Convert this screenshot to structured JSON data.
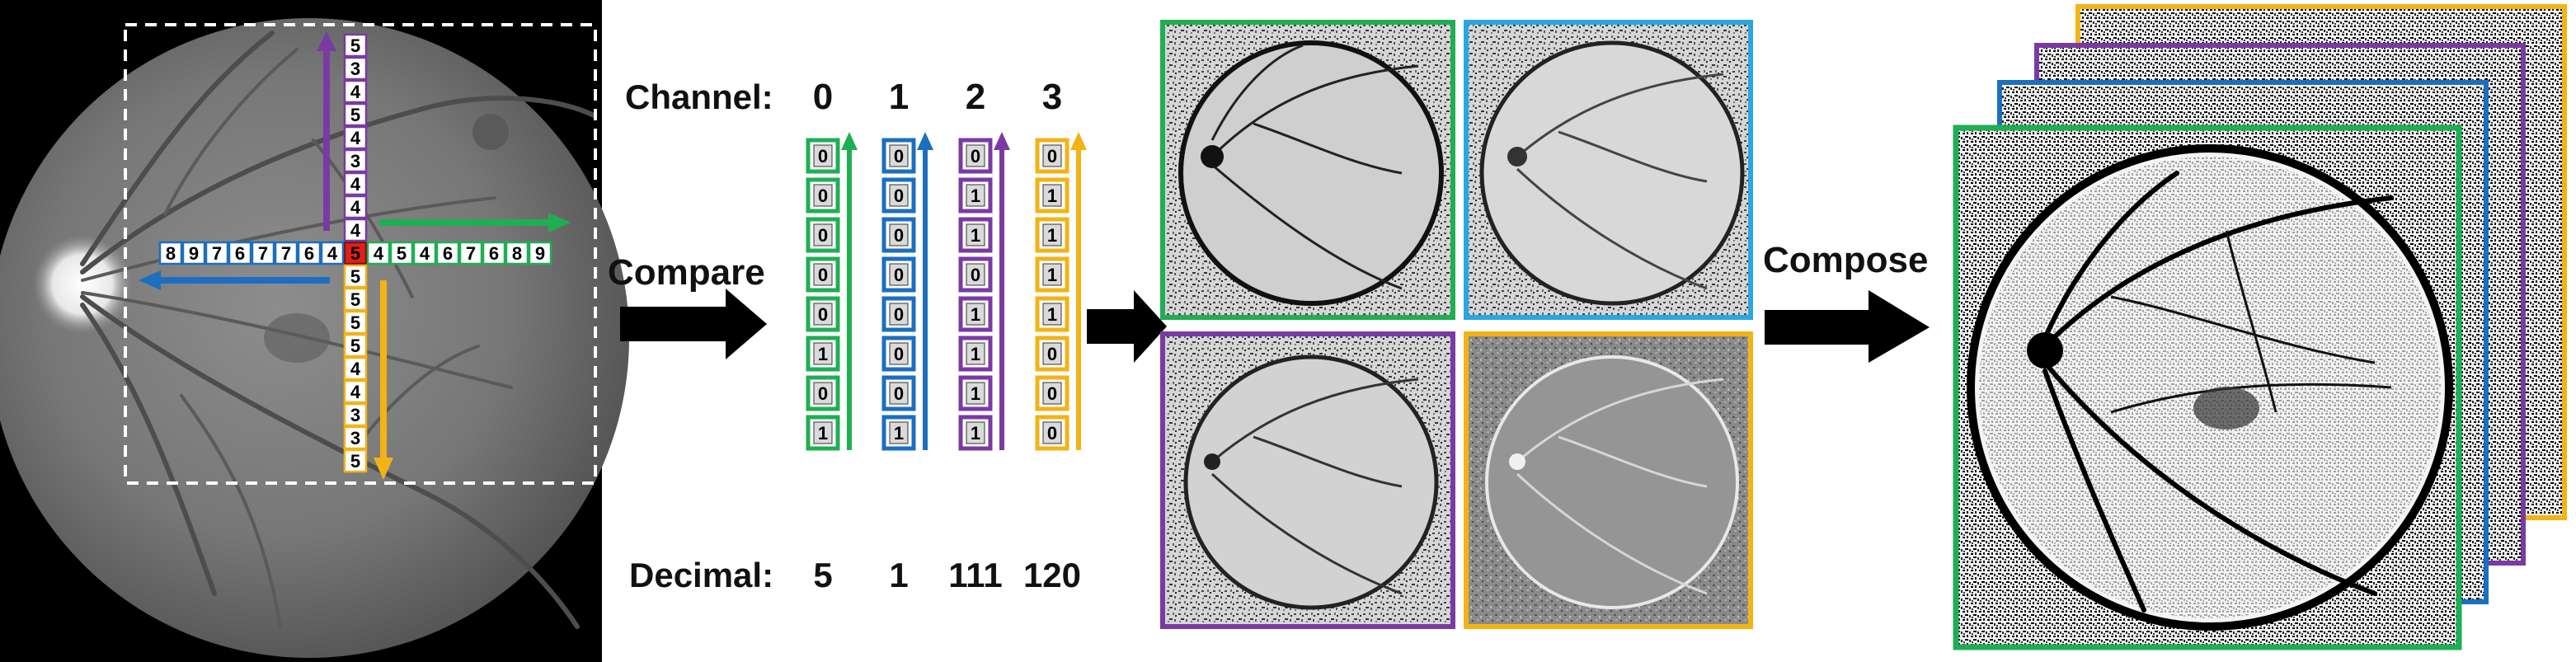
{
  "labels": {
    "channel": "Channel:",
    "decimal": "Decimal:",
    "compare": "Compare",
    "compose": "Compose"
  },
  "colors": {
    "green": "#1fae54",
    "blue": "#1c6fbf",
    "purple": "#7a3aa3",
    "yellow": "#f3b316",
    "red": "#e0201c",
    "cyan": "#2aa7df"
  },
  "neighborhood": {
    "center": "5",
    "up": [
      "4",
      "4",
      "4",
      "3",
      "4",
      "5",
      "4",
      "3",
      "5"
    ],
    "left": [
      "4",
      "6",
      "7",
      "7",
      "6",
      "7",
      "9",
      "8"
    ],
    "right": [
      "4",
      "5",
      "4",
      "6",
      "7",
      "6",
      "8",
      "9"
    ],
    "down": [
      "5",
      "5",
      "5",
      "5",
      "4",
      "4",
      "3",
      "3",
      "5"
    ]
  },
  "channels": [
    {
      "id": "0",
      "color": "green",
      "bits": [
        "0",
        "0",
        "0",
        "0",
        "0",
        "1",
        "0",
        "1"
      ],
      "decimal": "5"
    },
    {
      "id": "1",
      "color": "blue",
      "bits": [
        "0",
        "0",
        "0",
        "0",
        "0",
        "0",
        "0",
        "1"
      ],
      "decimal": "1"
    },
    {
      "id": "2",
      "color": "purple",
      "bits": [
        "0",
        "1",
        "1",
        "0",
        "1",
        "1",
        "1",
        "1"
      ],
      "decimal": "111"
    },
    {
      "id": "3",
      "color": "yellow",
      "bits": [
        "0",
        "1",
        "1",
        "1",
        "1",
        "0",
        "0",
        "0"
      ],
      "decimal": "120"
    }
  ],
  "icons": [
    "right-arrow-icon"
  ]
}
